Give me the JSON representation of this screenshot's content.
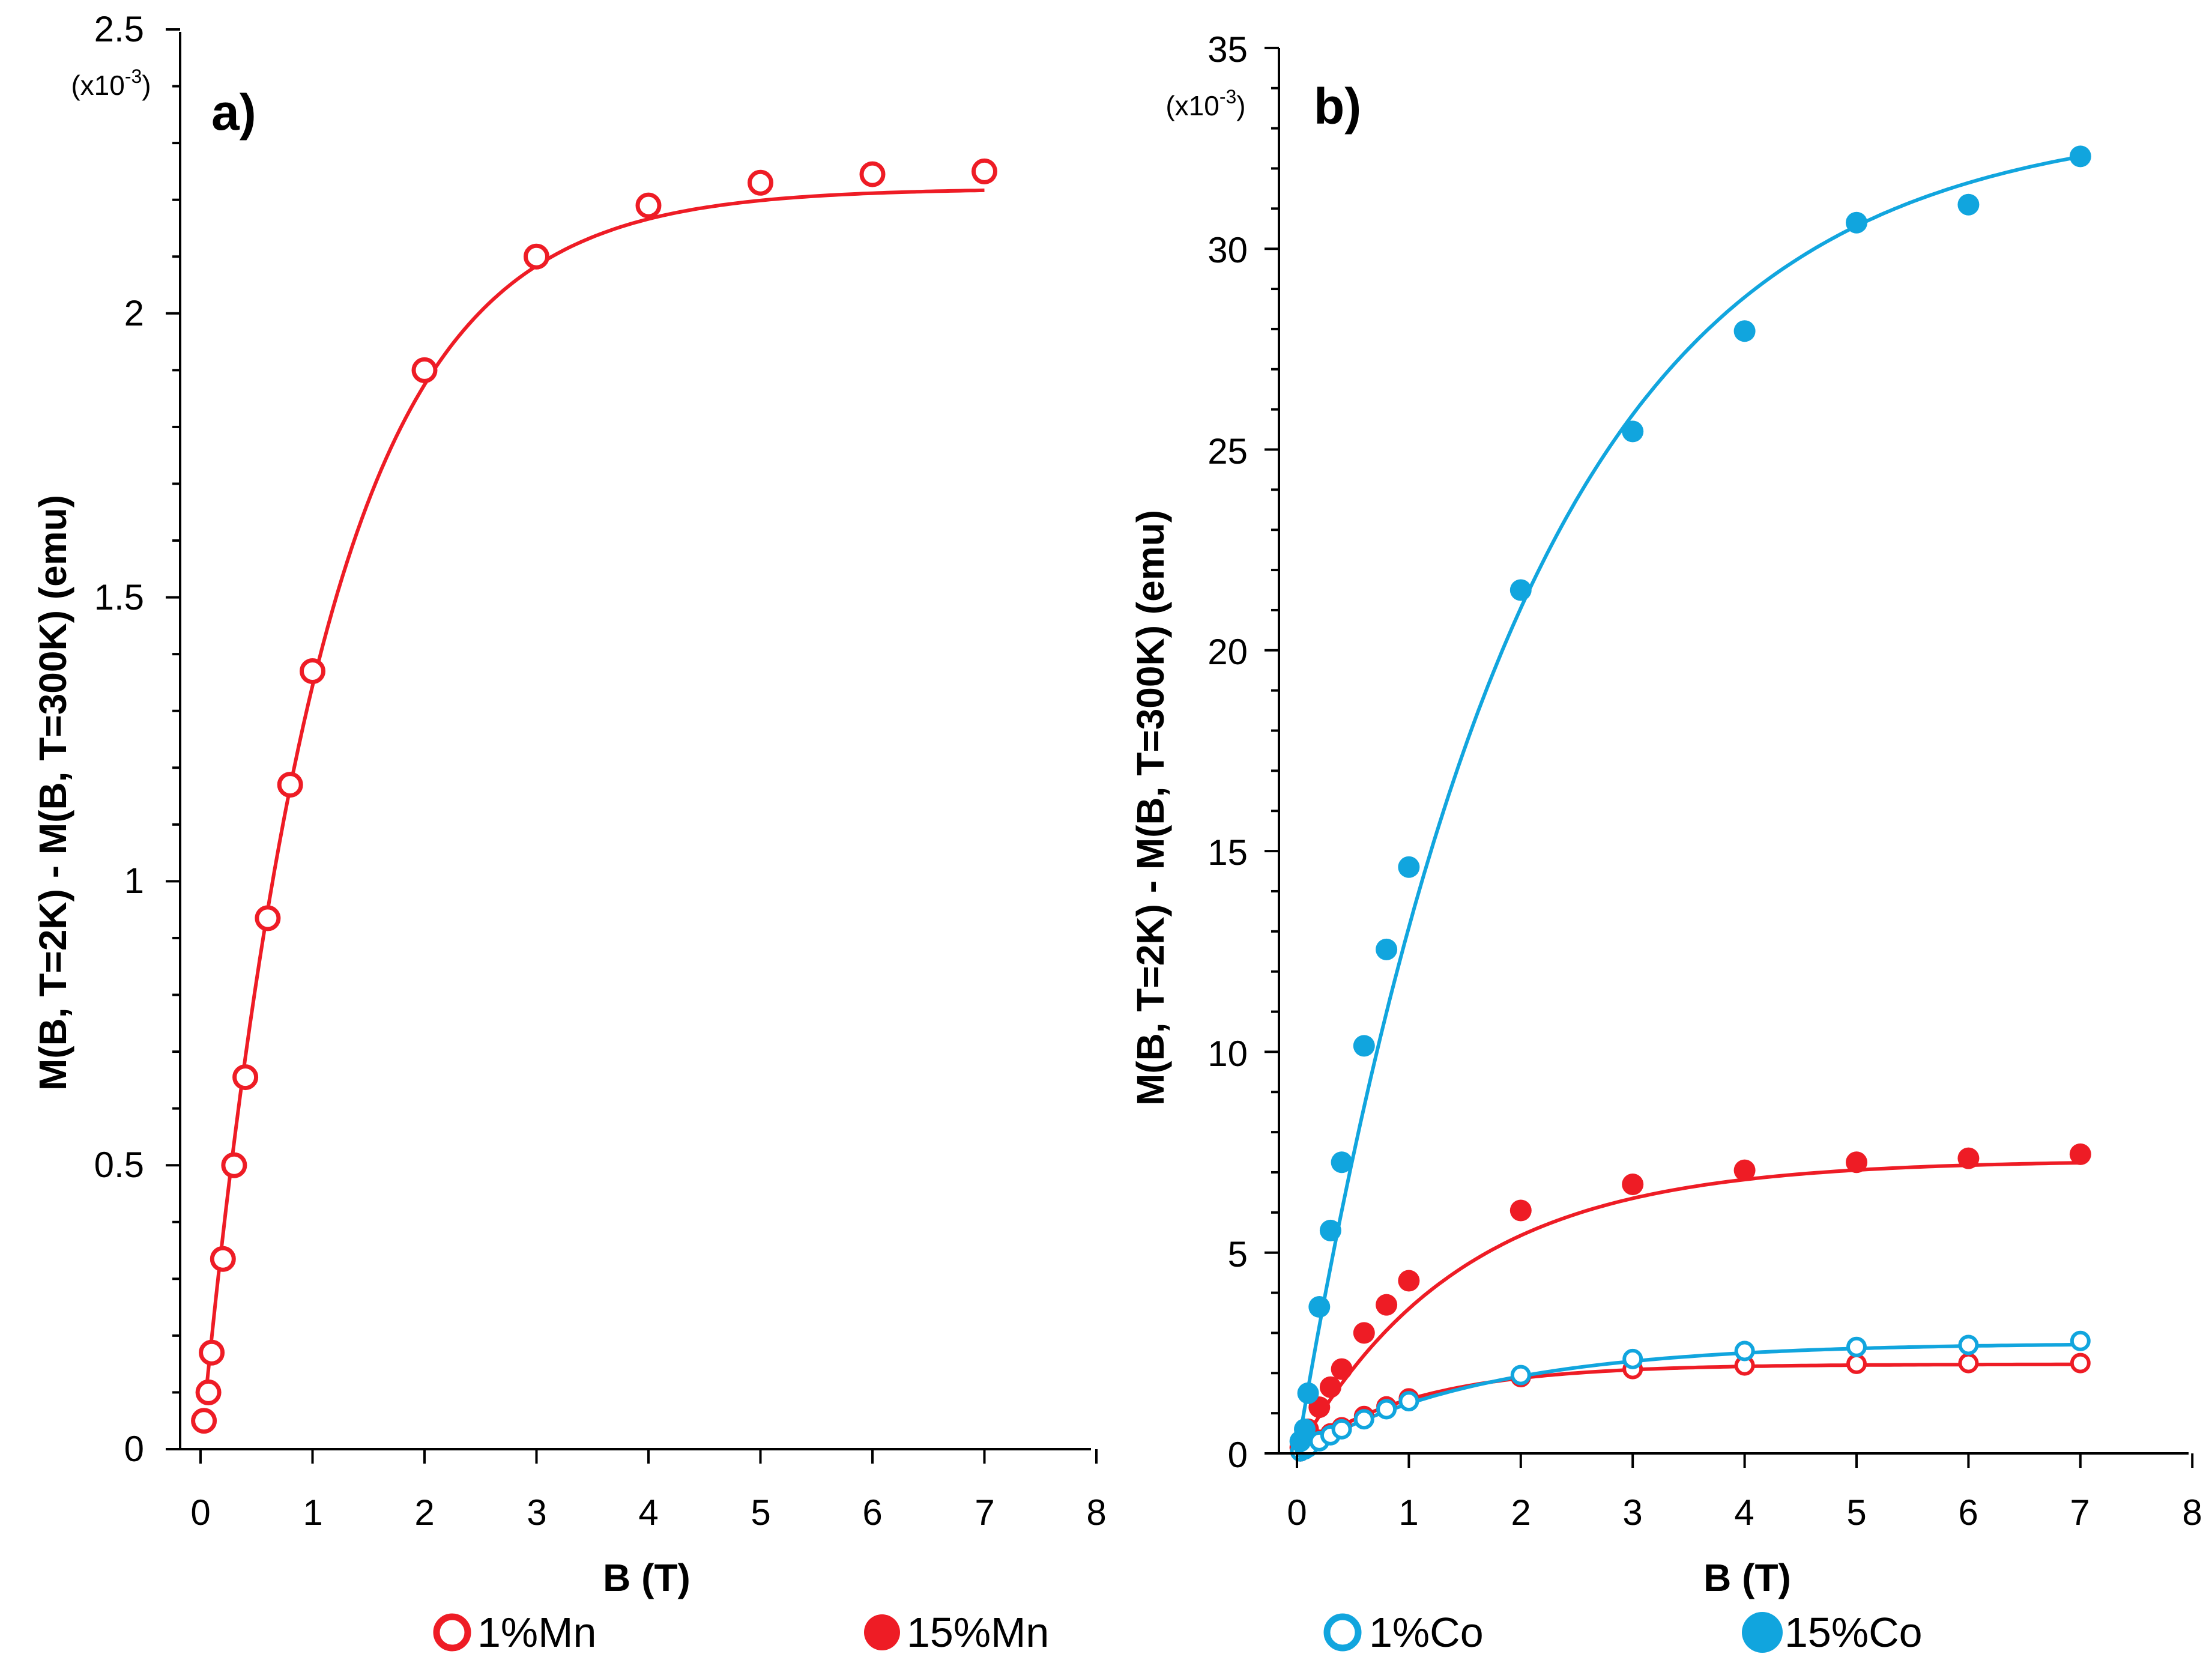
{
  "colors": {
    "mn": "#ee1c25",
    "co": "#11a5de",
    "axis": "#000000"
  },
  "legend": [
    {
      "label": "1%Mn",
      "color": "#ee1c25",
      "filled": false
    },
    {
      "label": "15%Mn",
      "color": "#ee1c25",
      "filled": true
    },
    {
      "label": "1%Co",
      "color": "#11a5de",
      "filled": false
    },
    {
      "label": "15%Co",
      "color": "#11a5de",
      "filled": true
    }
  ],
  "chart_data": [
    {
      "type": "scatter",
      "panel_label": "a)",
      "multiplier_prefix": "(x10",
      "multiplier_exp": "-3",
      "multiplier_suffix": ")",
      "xlabel": "B (T)",
      "ylabel": "M(B, T=2K) - M(B, T=300K)  (emu)",
      "xlim": [
        0,
        8
      ],
      "ylim": [
        0,
        2.5
      ],
      "xticks": [
        "0",
        "1",
        "2",
        "3",
        "4",
        "5",
        "6",
        "7",
        "8"
      ],
      "yticks": [
        "0",
        "0.5",
        "1",
        "1.5",
        "2",
        "2.5"
      ],
      "series": [
        {
          "name": "1%Mn",
          "color": "#ee1c25",
          "filled": false,
          "x": [
            0.03,
            0.07,
            0.1,
            0.2,
            0.3,
            0.4,
            0.6,
            0.8,
            1.0,
            2,
            3,
            4,
            5,
            6,
            7
          ],
          "y": [
            0.05,
            0.1,
            0.17,
            0.335,
            0.5,
            0.655,
            0.935,
            1.17,
            1.37,
            1.9,
            2.1,
            2.19,
            2.23,
            2.245,
            2.25
          ],
          "fit": {
            "a": 2.22,
            "b": 0.93,
            "x0": 0.05,
            "x1": 7.0
          }
        }
      ]
    },
    {
      "type": "scatter",
      "panel_label": "b)",
      "multiplier_prefix": "(x10",
      "multiplier_exp": "-3",
      "multiplier_suffix": ")",
      "xlabel": "B (T)",
      "ylabel": "M(B, T=2K) - M(B, T=300K)  (emu)",
      "xlim": [
        0,
        8
      ],
      "ylim": [
        0,
        35
      ],
      "xticks": [
        "0",
        "1",
        "2",
        "3",
        "4",
        "5",
        "6",
        "7",
        "8"
      ],
      "yticks": [
        "0",
        "5",
        "10",
        "15",
        "20",
        "25",
        "30",
        "35"
      ],
      "series": [
        {
          "name": "1%Mn",
          "color": "#ee1c25",
          "filled": false,
          "x": [
            0.03,
            0.07,
            0.1,
            0.2,
            0.3,
            0.4,
            0.6,
            0.8,
            1.0,
            2,
            3,
            4,
            5,
            6,
            7
          ],
          "y": [
            0.05,
            0.1,
            0.17,
            0.34,
            0.5,
            0.65,
            0.93,
            1.17,
            1.37,
            1.9,
            2.1,
            2.19,
            2.23,
            2.25,
            2.25
          ],
          "fit": {
            "a": 2.22,
            "b": 0.93,
            "x0": 0.0,
            "x1": 7.0
          }
        },
        {
          "name": "15%Mn",
          "color": "#ee1c25",
          "filled": true,
          "x": [
            0.03,
            0.07,
            0.1,
            0.2,
            0.3,
            0.4,
            0.6,
            0.8,
            1.0,
            2,
            3,
            4,
            5,
            6,
            7
          ],
          "y": [
            0.15,
            0.35,
            0.6,
            1.15,
            1.65,
            2.1,
            3.0,
            3.7,
            4.3,
            6.05,
            6.7,
            7.05,
            7.25,
            7.35,
            7.45
          ],
          "fit": {
            "a": 7.3,
            "b": 0.68,
            "x0": 0.0,
            "x1": 7.0
          }
        },
        {
          "name": "1%Co",
          "color": "#11a5de",
          "filled": false,
          "x": [
            0.03,
            0.07,
            0.1,
            0.2,
            0.3,
            0.4,
            0.6,
            0.8,
            1.0,
            2,
            3,
            4,
            5,
            6,
            7
          ],
          "y": [
            0.05,
            0.1,
            0.15,
            0.3,
            0.45,
            0.6,
            0.85,
            1.1,
            1.3,
            1.95,
            2.35,
            2.55,
            2.65,
            2.7,
            2.8
          ],
          "fit": {
            "a": 2.75,
            "b": 0.6,
            "x0": 0.0,
            "x1": 7.0
          }
        },
        {
          "name": "15%Co",
          "color": "#11a5de",
          "filled": true,
          "x": [
            0.03,
            0.07,
            0.1,
            0.2,
            0.3,
            0.4,
            0.6,
            0.8,
            1.0,
            2,
            3,
            4,
            5,
            6,
            7
          ],
          "y": [
            0.3,
            0.6,
            1.5,
            3.65,
            5.55,
            7.25,
            10.15,
            12.55,
            14.6,
            21.5,
            25.45,
            27.95,
            30.65,
            31.1,
            32.3
          ],
          "fit": {
            "a": 33.3,
            "b": 0.5,
            "x0": 0.0,
            "x1": 7.0
          }
        }
      ]
    }
  ]
}
